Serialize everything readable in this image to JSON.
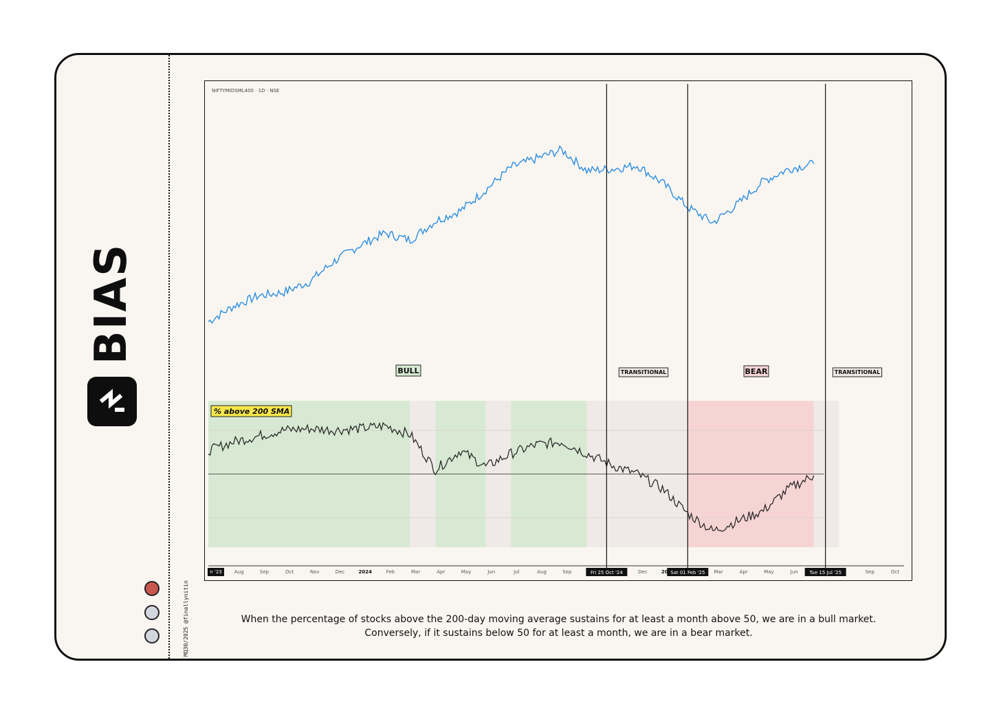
{
  "brand": {
    "name": "BIAS",
    "credit": "MQ30/2025 @finallynitin",
    "dots": [
      "#c9564f",
      "#d3d6dc",
      "#d3d6dc"
    ]
  },
  "chart_data": [
    {
      "type": "line",
      "title": "NIFTYMIDSML400 · 1D · NSE",
      "color": "#2b8de0",
      "x": [
        "2023-07",
        "2023-08",
        "2023-09",
        "2023-10",
        "2023-11",
        "2023-12",
        "2024-01",
        "2024-02",
        "2024-03",
        "2024-04",
        "2024-05",
        "2024-06",
        "2024-07",
        "2024-08",
        "2024-09",
        "2024-10",
        "2024-11",
        "2024-12",
        "2025-01",
        "2025-02",
        "2025-03",
        "2025-04",
        "2025-05",
        "2025-06",
        "2025-07"
      ],
      "series": [
        {
          "values": [
            10800,
            11700,
            12300,
            12500,
            13100,
            14300,
            15200,
            15900,
            15500,
            16600,
            17200,
            18400,
            19700,
            20200,
            20700,
            19500,
            19600,
            19800,
            18800,
            17400,
            16500,
            17600,
            18900,
            19600,
            19900
          ]
        }
      ]
    },
    {
      "type": "area",
      "label": "% above 200 SMA",
      "line_color": "#2b2b2b",
      "ylim": [
        0,
        100
      ],
      "reference_line": 50,
      "x": [
        "2023-07",
        "2023-08",
        "2023-09",
        "2023-10",
        "2023-11",
        "2023-12",
        "2024-01",
        "2024-02",
        "2024-03",
        "2024-04",
        "2024-05",
        "2024-06",
        "2024-07",
        "2024-08",
        "2024-09",
        "2024-10",
        "2024-11",
        "2024-12",
        "2025-01",
        "2025-02",
        "2025-03",
        "2025-04",
        "2025-05",
        "2025-06",
        "2025-07"
      ],
      "series": [
        {
          "values": [
            66,
            72,
            76,
            80,
            81,
            80,
            81,
            83,
            77,
            53,
            66,
            55,
            64,
            70,
            72,
            64,
            56,
            50,
            40,
            23,
            11,
            18,
            25,
            40,
            49
          ]
        }
      ],
      "regimes": [
        {
          "label": "BULL",
          "color": "#d7e9d2"
        },
        {
          "label": "TRANSITIONAL",
          "color": "#efeae7"
        },
        {
          "label": "BEAR",
          "color": "#f7d4d4"
        },
        {
          "label": "TRANSITIONAL",
          "color": "#efeae7"
        }
      ],
      "regime_bands": [
        {
          "from": "2023-07",
          "to": "2024-03",
          "color": "#d7e9d2"
        },
        {
          "from": "2024-03",
          "to": "2024-04",
          "color": "#efeae7"
        },
        {
          "from": "2024-04",
          "to": "2024-06",
          "color": "#d7e9d2"
        },
        {
          "from": "2024-06",
          "to": "2024-07",
          "color": "#efeae7"
        },
        {
          "from": "2024-07",
          "to": "2024-10",
          "color": "#d7e9d2"
        },
        {
          "from": "2024-10",
          "to": "2025-02",
          "color": "#efeae7"
        },
        {
          "from": "2025-02",
          "to": "2025-07",
          "color": "#f7d4d4"
        },
        {
          "from": "2025-07",
          "to": "2025-08",
          "color": "#efeae7"
        }
      ],
      "regime_markers": [
        "Fri 25 Oct '24",
        "Sat 01 Feb '25",
        "Tue 15 Jul '25"
      ]
    }
  ],
  "x_axis": {
    "ticks": [
      "n '23",
      "Aug",
      "Sep",
      "Oct",
      "Nov",
      "Dec",
      "2024",
      "Feb",
      "Mar",
      "Apr",
      "May",
      "Jun",
      "Jul",
      "Aug",
      "Sep",
      "Oc",
      "Dec",
      "2025",
      "Mar",
      "Apr",
      "May",
      "Jun",
      "Sep",
      "Oct"
    ],
    "highlights": [
      "Fri 25 Oct '24",
      "Sat 01 Feb '25",
      "Tue 15 Jul '25"
    ]
  },
  "caption": "When the percentage of stocks above the 200-day moving average sustains for at least a month above 50, we are in a bull market. Conversely, if it sustains below 50 for at least a month, we are in a bear market."
}
